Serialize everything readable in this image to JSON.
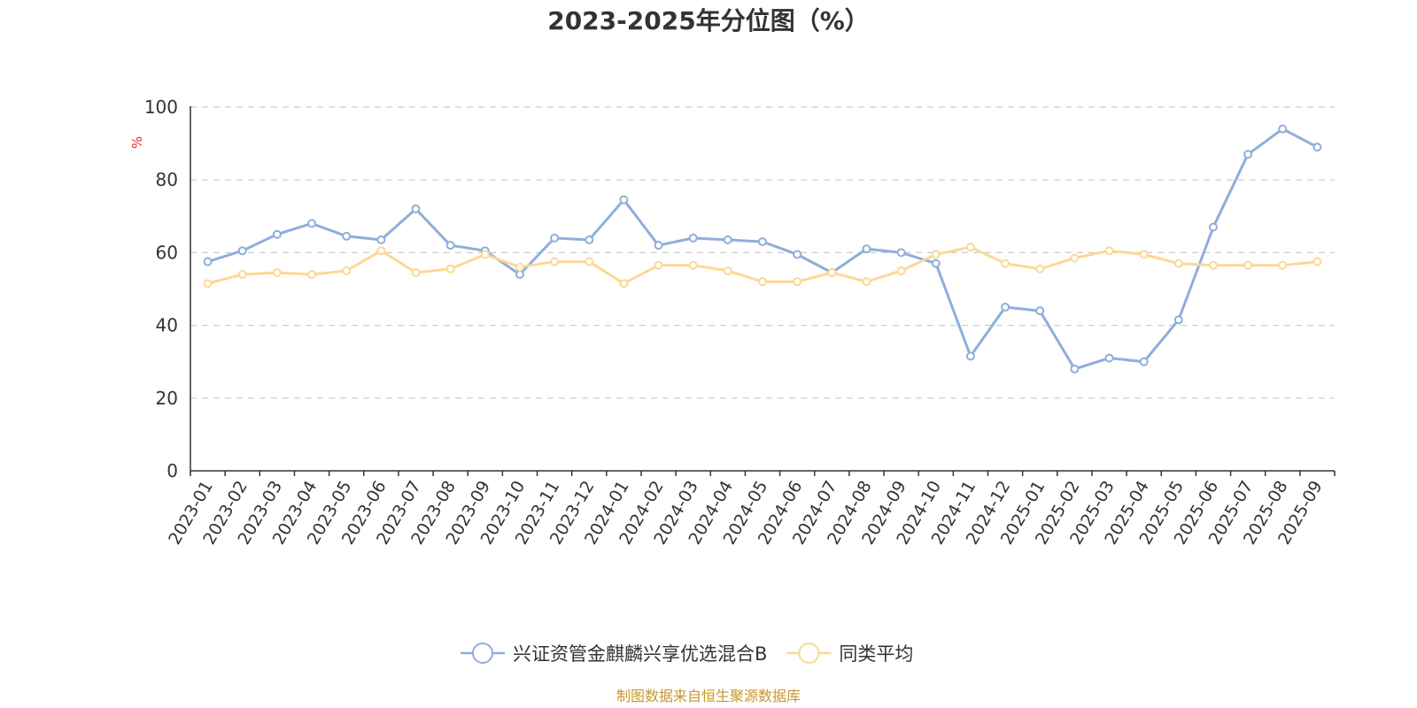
{
  "chart_data": {
    "type": "line",
    "title": "2023-2025年分位图（%）",
    "ylabel": "%",
    "xlabel": "",
    "ylim": [
      0,
      100
    ],
    "yticks": [
      0,
      20,
      40,
      60,
      80,
      100
    ],
    "grid": true,
    "legend_position": "bottom-center",
    "categories": [
      "2023-01",
      "2023-02",
      "2023-03",
      "2023-04",
      "2023-05",
      "2023-06",
      "2023-07",
      "2023-08",
      "2023-09",
      "2023-10",
      "2023-11",
      "2023-12",
      "2024-01",
      "2024-02",
      "2024-03",
      "2024-04",
      "2024-05",
      "2024-06",
      "2024-07",
      "2024-08",
      "2024-09",
      "2024-10",
      "2024-11",
      "2024-12",
      "2025-01",
      "2025-02",
      "2025-03",
      "2025-04",
      "2025-05",
      "2025-06",
      "2025-07",
      "2025-08",
      "2025-09"
    ],
    "series": [
      {
        "name": "兴证资管金麒麟兴享优选混合B",
        "color": "#8eaedb",
        "values": [
          57.5,
          60.5,
          65,
          68,
          64.5,
          63.5,
          72,
          62,
          60.5,
          54,
          64,
          63.5,
          74.5,
          62,
          64,
          63.5,
          63,
          59.5,
          54.5,
          61,
          60,
          57,
          31.5,
          45,
          44,
          28,
          31,
          30,
          41.5,
          67,
          87,
          94,
          89
        ]
      },
      {
        "name": "同类平均",
        "color": "#fcd896",
        "values": [
          51.5,
          54,
          54.5,
          54,
          55,
          60.5,
          54.5,
          55.5,
          59.5,
          56,
          57.5,
          57.5,
          51.5,
          56.5,
          56.5,
          55,
          52,
          52,
          54.5,
          52,
          55,
          59.5,
          61.5,
          57,
          55.5,
          58.5,
          60.5,
          59.5,
          57,
          56.5,
          56.5,
          56.5,
          57.5
        ]
      }
    ]
  },
  "source_text": "制图数据来自恒生聚源数据库",
  "colors": {
    "axis": "#333333",
    "grid": "#cccccc",
    "unit": "#e8281c",
    "source": "#c8962e"
  }
}
